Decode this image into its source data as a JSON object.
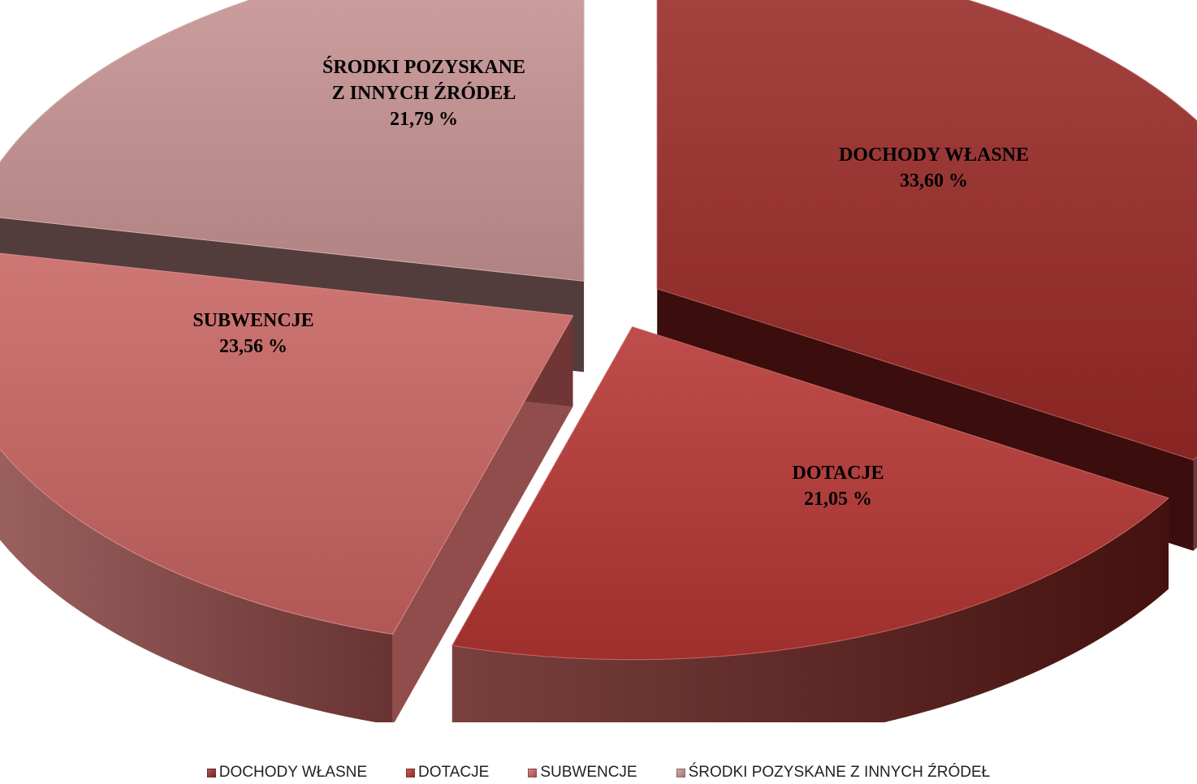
{
  "chart_data": {
    "type": "pie",
    "title": "",
    "slices": [
      {
        "name": "DOCHODY WŁASNE",
        "label_lines": [
          "DOCHODY WŁASNE"
        ],
        "value_text": "33,60 %",
        "value": 33.6,
        "color": "#9a2a28",
        "side_color": "#4a1210"
      },
      {
        "name": "DOTACJE",
        "label_lines": [
          "DOTACJE"
        ],
        "value_text": "21,05 %",
        "value": 21.05,
        "color": "#b53532",
        "side_color": "#5a1714"
      },
      {
        "name": "SUBWENCJE",
        "label_lines": [
          "SUBWENCJE"
        ],
        "value_text": "23,56 %",
        "value": 23.56,
        "color": "#c96462",
        "side_color": "#8b4442"
      },
      {
        "name": "ŚRODKI POZYSKANE Z INNYCH ŹRÓDEŁ",
        "label_lines": [
          "ŚRODKI POZYSKANE",
          "Z INNYCH ŹRÓDEŁ"
        ],
        "value_text": "21,79 %",
        "value": 21.79,
        "color": "#c89494",
        "side_color": "#4a3232"
      }
    ],
    "legend": {
      "placement": "bottom",
      "entries": [
        "DOCHODY WŁASNE",
        "DOTACJE",
        "SUBWENCJE",
        "ŚRODKI POZYSKANE Z INNYCH ŹRÓDEŁ"
      ]
    }
  }
}
